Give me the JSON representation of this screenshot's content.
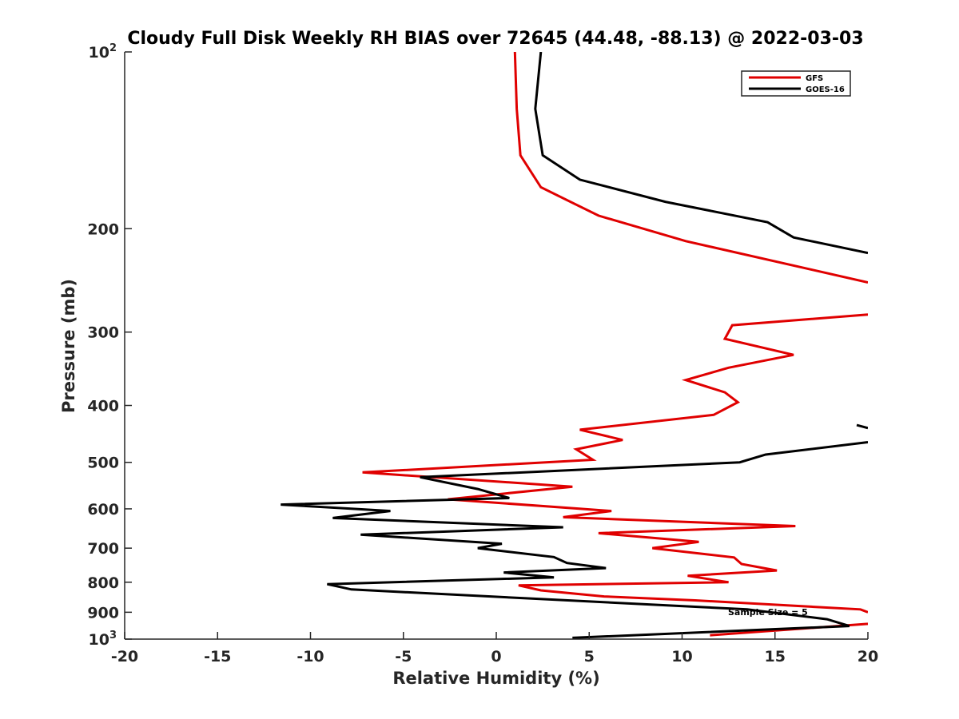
{
  "chart_data": {
    "type": "line",
    "title": "Cloudy Full Disk Weekly RH BIAS over 72645 (44.48, -88.13) @ 2022-03-03",
    "xlabel": "Relative Humidity (%)",
    "ylabel": "Pressure (mb)",
    "xlim": [
      -20,
      20
    ],
    "ylim": [
      100,
      1000
    ],
    "y_scale": "log",
    "y_reversed": true,
    "grid": false,
    "legend_position": "top-right",
    "xticks": [
      {
        "value": -20,
        "label": "-20"
      },
      {
        "value": -15,
        "label": "-15"
      },
      {
        "value": -10,
        "label": "-10"
      },
      {
        "value": -5,
        "label": "-5"
      },
      {
        "value": 0,
        "label": "0"
      },
      {
        "value": 5,
        "label": "5"
      },
      {
        "value": 10,
        "label": "10"
      },
      {
        "value": 15,
        "label": "15"
      },
      {
        "value": 20,
        "label": "20"
      }
    ],
    "yticks": [
      {
        "value": 100,
        "label": "10",
        "sup": "2"
      },
      {
        "value": 200,
        "label": "200"
      },
      {
        "value": 300,
        "label": "300"
      },
      {
        "value": 400,
        "label": "400"
      },
      {
        "value": 500,
        "label": "500"
      },
      {
        "value": 600,
        "label": "600"
      },
      {
        "value": 700,
        "label": "700"
      },
      {
        "value": 800,
        "label": "800"
      },
      {
        "value": 900,
        "label": "900"
      },
      {
        "value": 1000,
        "label": "10",
        "sup": "3"
      }
    ],
    "annotation": "Sample Size = 5",
    "series": [
      {
        "name": "GFS",
        "color": "#e00000",
        "segments": [
          [
            [
              1.0,
              100
            ],
            [
              1.1,
              125
            ],
            [
              1.3,
              150
            ],
            [
              2.4,
              170
            ],
            [
              5.5,
              190
            ],
            [
              10.2,
              210
            ],
            [
              17,
              235
            ],
            [
              20,
              247
            ]
          ],
          [
            [
              20,
              280
            ],
            [
              12.7,
              292
            ],
            [
              12.3,
              308
            ],
            [
              16,
              328
            ],
            [
              12.5,
              345
            ],
            [
              10.2,
              362
            ],
            [
              12.3,
              380
            ],
            [
              13.0,
              395
            ],
            [
              11.7,
              415
            ],
            [
              4.5,
              440
            ],
            [
              6.8,
              458
            ],
            [
              4.3,
              475
            ],
            [
              5.2,
              495
            ],
            [
              -7.2,
              520
            ],
            [
              4.1,
              550
            ],
            [
              -2.6,
              578
            ],
            [
              6.2,
              605
            ],
            [
              3.6,
              620
            ],
            [
              16.1,
              642
            ],
            [
              5.5,
              660
            ],
            [
              10.9,
              683
            ],
            [
              8.4,
              700
            ],
            [
              12.8,
              726
            ],
            [
              13.2,
              745
            ],
            [
              15.1,
              764
            ],
            [
              10.3,
              780
            ],
            [
              12.5,
              800
            ],
            [
              1.2,
              810
            ],
            [
              2.4,
              826
            ],
            [
              5.8,
              846
            ],
            [
              10.7,
              859
            ],
            [
              19.6,
              890
            ],
            [
              20,
              900
            ]
          ],
          [
            [
              20,
              942
            ],
            [
              11.5,
              985
            ]
          ]
        ]
      },
      {
        "name": "GOES-16",
        "color": "#000000",
        "segments": [
          [
            [
              2.4,
              100
            ],
            [
              2.1,
              125
            ],
            [
              2.5,
              150
            ],
            [
              4.5,
              165
            ],
            [
              9.1,
              180
            ],
            [
              14.6,
              195
            ],
            [
              16.0,
              207
            ],
            [
              20,
              220
            ]
          ],
          [
            [
              19.4,
              432
            ],
            [
              20,
              437
            ]
          ],
          [
            [
              20,
              462
            ],
            [
              14.5,
              485
            ],
            [
              13.1,
              500
            ],
            [
              -4.1,
              530
            ],
            [
              -1.0,
              555
            ],
            [
              0.7,
              575
            ],
            [
              -11.6,
              590
            ],
            [
              -5.7,
              605
            ],
            [
              -8.8,
              622
            ],
            [
              3.6,
              645
            ],
            [
              -7.3,
              664
            ],
            [
              0.3,
              688
            ],
            [
              -1.0,
              700
            ],
            [
              3.1,
              725
            ],
            [
              3.8,
              742
            ],
            [
              5.9,
              757
            ],
            [
              0.4,
              770
            ],
            [
              3.1,
              785
            ],
            [
              -9.1,
              806
            ],
            [
              -7.8,
              823
            ],
            [
              1.6,
              852
            ],
            [
              13.5,
              890
            ],
            [
              17.8,
              925
            ],
            [
              19.0,
              950
            ],
            [
              4.1,
              995
            ]
          ]
        ]
      }
    ]
  }
}
